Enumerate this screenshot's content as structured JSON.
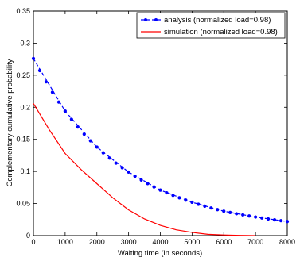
{
  "chart_data": {
    "type": "line",
    "title": "",
    "xlabel": "Waiting time (in seconds)",
    "ylabel": "Complementary cumulative probability",
    "xlim": [
      0,
      8000
    ],
    "ylim": [
      0,
      0.35
    ],
    "xticks": [
      0,
      1000,
      2000,
      3000,
      4000,
      5000,
      6000,
      7000,
      8000
    ],
    "yticks": [
      0,
      0.05,
      0.1,
      0.15,
      0.2,
      0.25,
      0.3,
      0.35
    ],
    "xtick_labels": [
      "0",
      "1000",
      "2000",
      "3000",
      "4000",
      "5000",
      "6000",
      "7000",
      "8000"
    ],
    "ytick_labels": [
      "0",
      "0.05",
      "0.1",
      "0.15",
      "0.2",
      "0.25",
      "0.3",
      "0.35"
    ],
    "grid": false,
    "legend_position": "top-right",
    "series": [
      {
        "name": "analysis (normalized load=0.98)",
        "color": "#0000ff",
        "style": "dashed-dots",
        "x": [
          0,
          1000,
          2000,
          3000,
          4000,
          5000,
          6000,
          7000,
          8000
        ],
        "y": [
          0.276,
          0.194,
          0.138,
          0.099,
          0.071,
          0.052,
          0.038,
          0.029,
          0.022
        ]
      },
      {
        "name": "simulation (normalized load=0.98)",
        "color": "#ff0000",
        "style": "solid",
        "x": [
          0,
          500,
          1000,
          1500,
          2000,
          2500,
          3000,
          3500,
          4000,
          4500,
          5000,
          5500,
          6000,
          6500,
          7000
        ],
        "y": [
          0.206,
          0.165,
          0.128,
          0.103,
          0.081,
          0.059,
          0.04,
          0.026,
          0.016,
          0.009,
          0.005,
          0.002,
          0.001,
          0.0003,
          0.0
        ]
      }
    ]
  }
}
